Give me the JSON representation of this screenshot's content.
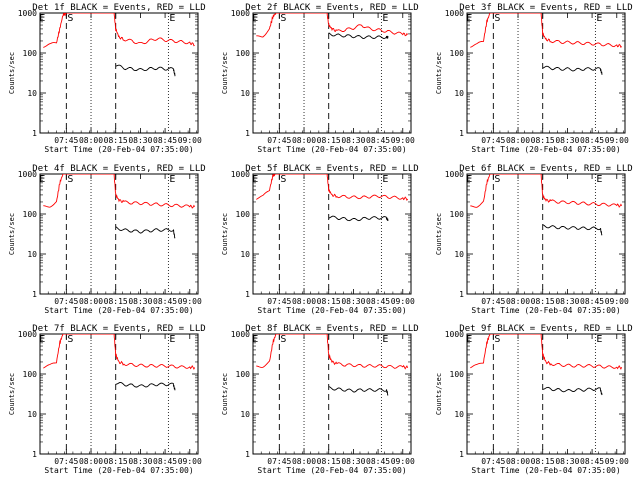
{
  "figure": {
    "xlabel": "Start Time (20-Feb-04 07:35:00)",
    "ylabel": "Counts/sec",
    "x_tick_labels": [
      "07:45",
      "08:00",
      "08:15",
      "08:30",
      "08:45",
      "09:00"
    ],
    "y_tick_labels": [
      "1",
      "10",
      "100",
      "1000"
    ],
    "colors": {
      "events": "#000000",
      "lld": "#ff0000",
      "axes": "#000000"
    }
  },
  "chart_data": [
    {
      "type": "line",
      "title": "Det 1f BLACK = Events, RED = LLD",
      "xlabel": "Start Time (20-Feb-04 07:35:00)",
      "ylabel": "Counts/sec",
      "y_scale": "log",
      "ylim": [
        1,
        1000
      ],
      "x_tick_values": [
        0,
        15,
        30,
        45,
        60,
        75
      ],
      "x_tick_labels": [
        "07:45",
        "08:00",
        "08:15",
        "08:30",
        "08:45",
        "09:00"
      ],
      "markers": {
        "S": 0,
        "E": 62,
        "E_left": -14
      },
      "series": [
        {
          "name": "Events",
          "color": "#000000",
          "x": [
            30,
            35,
            40,
            45,
            50,
            55,
            60,
            65,
            66
          ],
          "y": [
            50,
            42,
            40,
            38,
            40,
            42,
            40,
            40,
            28
          ]
        },
        {
          "name": "LLD",
          "color": "#ff0000",
          "x": [
            -14,
            -10,
            -6,
            -4,
            -2,
            0,
            5,
            10,
            15,
            20,
            25,
            29,
            30,
            32,
            35,
            40,
            45,
            50,
            55,
            60,
            65,
            70,
            75,
            78
          ],
          "y": [
            150,
            160,
            180,
            400,
            900,
            1000,
            1000,
            1000,
            1000,
            1000,
            1000,
            1000,
            400,
            250,
            220,
            200,
            170,
            200,
            230,
            210,
            200,
            190,
            180,
            160
          ]
        }
      ]
    },
    {
      "type": "line",
      "title": "Det 2f BLACK = Events, RED = LLD",
      "xlabel": "Start Time (20-Feb-04 07:35:00)",
      "ylabel": "Counts/sec",
      "y_scale": "log",
      "ylim": [
        1,
        1000
      ],
      "x_tick_values": [
        0,
        15,
        30,
        45,
        60,
        75
      ],
      "x_tick_labels": [
        "07:45",
        "08:00",
        "08:15",
        "08:30",
        "08:45",
        "09:00"
      ],
      "markers": {
        "S": 0,
        "E": 62,
        "E_left": -14
      },
      "series": [
        {
          "name": "Events",
          "color": "#000000",
          "x": [
            30,
            35,
            40,
            45,
            50,
            55,
            60,
            65,
            66
          ],
          "y": [
            300,
            280,
            270,
            260,
            250,
            250,
            250,
            250,
            250
          ]
        },
        {
          "name": "LLD",
          "color": "#ff0000",
          "x": [
            -14,
            -10,
            -6,
            -4,
            -2,
            0,
            5,
            10,
            15,
            20,
            25,
            29,
            30,
            32,
            35,
            40,
            45,
            50,
            55,
            60,
            65,
            70,
            75,
            78
          ],
          "y": [
            250,
            270,
            400,
            800,
            1000,
            1000,
            1000,
            1000,
            1000,
            1000,
            1000,
            1000,
            500,
            400,
            350,
            380,
            420,
            500,
            400,
            380,
            350,
            320,
            300,
            280
          ]
        }
      ]
    },
    {
      "type": "line",
      "title": "Det 3f BLACK = Events, RED = LLD",
      "xlabel": "Start Time (20-Feb-04 07:35:00)",
      "ylabel": "Counts/sec",
      "y_scale": "log",
      "ylim": [
        1,
        1000
      ],
      "x_tick_values": [
        0,
        15,
        30,
        45,
        60,
        75
      ],
      "x_tick_labels": [
        "07:45",
        "08:00",
        "08:15",
        "08:30",
        "08:45",
        "09:00"
      ],
      "markers": {
        "S": 0,
        "E": 62,
        "E_left": -14
      },
      "series": [
        {
          "name": "Events",
          "color": "#000000",
          "x": [
            30,
            35,
            40,
            45,
            50,
            55,
            60,
            65,
            66
          ],
          "y": [
            45,
            42,
            40,
            40,
            38,
            40,
            40,
            40,
            30
          ]
        },
        {
          "name": "LLD",
          "color": "#ff0000",
          "x": [
            -14,
            -10,
            -6,
            -4,
            -2,
            0,
            5,
            10,
            15,
            20,
            25,
            29,
            30,
            32,
            35,
            40,
            45,
            50,
            55,
            60,
            65,
            70,
            75,
            78
          ],
          "y": [
            150,
            160,
            200,
            600,
            1000,
            1000,
            1000,
            1000,
            1000,
            1000,
            1000,
            1000,
            300,
            220,
            200,
            190,
            185,
            180,
            175,
            170,
            165,
            160,
            155,
            150
          ]
        }
      ]
    },
    {
      "type": "line",
      "title": "Det 4f BLACK = Events, RED = LLD",
      "xlabel": "Start Time (20-Feb-04 07:35:00)",
      "ylabel": "Counts/sec",
      "y_scale": "log",
      "ylim": [
        1,
        1000
      ],
      "x_tick_values": [
        0,
        15,
        30,
        45,
        60,
        75
      ],
      "x_tick_labels": [
        "07:45",
        "08:00",
        "08:15",
        "08:30",
        "08:45",
        "09:00"
      ],
      "markers": {
        "S": 0,
        "E": 62,
        "E_left": -14
      },
      "series": [
        {
          "name": "Events",
          "color": "#000000",
          "x": [
            30,
            35,
            40,
            45,
            50,
            55,
            60,
            65,
            66
          ],
          "y": [
            45,
            40,
            38,
            36,
            38,
            40,
            40,
            40,
            25
          ]
        },
        {
          "name": "LLD",
          "color": "#ff0000",
          "x": [
            -14,
            -10,
            -6,
            -4,
            -2,
            0,
            5,
            10,
            15,
            20,
            25,
            29,
            30,
            32,
            35,
            40,
            45,
            50,
            55,
            60,
            65,
            70,
            75,
            78
          ],
          "y": [
            150,
            160,
            200,
            600,
            1000,
            1000,
            1000,
            1000,
            1000,
            1000,
            1000,
            1000,
            300,
            220,
            200,
            190,
            185,
            180,
            175,
            170,
            165,
            160,
            155,
            150
          ]
        }
      ]
    },
    {
      "type": "line",
      "title": "Det 5f BLACK = Events, RED = LLD",
      "xlabel": "Start Time (20-Feb-04 07:35:00)",
      "ylabel": "Counts/sec",
      "y_scale": "log",
      "ylim": [
        1,
        1000
      ],
      "x_tick_values": [
        0,
        15,
        30,
        45,
        60,
        75
      ],
      "x_tick_labels": [
        "07:45",
        "08:00",
        "08:15",
        "08:30",
        "08:45",
        "09:00"
      ],
      "markers": {
        "S": 0,
        "E": 62,
        "E_left": -14
      },
      "series": [
        {
          "name": "Events",
          "color": "#000000",
          "x": [
            30,
            35,
            40,
            45,
            50,
            55,
            60,
            65,
            66
          ],
          "y": [
            85,
            80,
            75,
            72,
            75,
            80,
            80,
            80,
            70
          ]
        },
        {
          "name": "LLD",
          "color": "#ff0000",
          "x": [
            -14,
            -10,
            -6,
            -4,
            -2,
            0,
            5,
            10,
            15,
            20,
            25,
            29,
            30,
            32,
            35,
            40,
            45,
            50,
            55,
            60,
            65,
            70,
            75,
            78
          ],
          "y": [
            250,
            270,
            400,
            900,
            1000,
            1000,
            1000,
            1000,
            1000,
            1000,
            1000,
            1000,
            400,
            300,
            280,
            270,
            265,
            260,
            270,
            280,
            270,
            260,
            250,
            240
          ]
        }
      ]
    },
    {
      "type": "line",
      "title": "Det 6f BLACK = Events, RED = LLD",
      "xlabel": "Start Time (20-Feb-04 07:35:00)",
      "ylabel": "Counts/sec",
      "y_scale": "log",
      "ylim": [
        1,
        1000
      ],
      "x_tick_values": [
        0,
        15,
        30,
        45,
        60,
        75
      ],
      "x_tick_labels": [
        "07:45",
        "08:00",
        "08:15",
        "08:30",
        "08:45",
        "09:00"
      ],
      "markers": {
        "S": 0,
        "E": 62,
        "E_left": -14
      },
      "series": [
        {
          "name": "Events",
          "color": "#000000",
          "x": [
            30,
            35,
            40,
            45,
            50,
            55,
            60,
            65,
            66
          ],
          "y": [
            50,
            48,
            46,
            45,
            45,
            44,
            44,
            44,
            30
          ]
        },
        {
          "name": "LLD",
          "color": "#ff0000",
          "x": [
            -14,
            -10,
            -6,
            -4,
            -2,
            0,
            5,
            10,
            15,
            20,
            25,
            29,
            30,
            32,
            35,
            40,
            45,
            50,
            55,
            60,
            65,
            70,
            75,
            78
          ],
          "y": [
            150,
            160,
            200,
            600,
            1000,
            1000,
            1000,
            1000,
            1000,
            1000,
            1000,
            1000,
            280,
            220,
            210,
            200,
            195,
            190,
            185,
            180,
            175,
            170,
            165,
            160
          ]
        }
      ]
    },
    {
      "type": "line",
      "title": "Det 7f BLACK = Events, RED = LLD",
      "xlabel": "Start Time (20-Feb-04 07:35:00)",
      "ylabel": "Counts/sec",
      "y_scale": "log",
      "ylim": [
        1,
        1000
      ],
      "x_tick_values": [
        0,
        15,
        30,
        45,
        60,
        75
      ],
      "x_tick_labels": [
        "07:45",
        "08:00",
        "08:15",
        "08:30",
        "08:45",
        "09:00"
      ],
      "markers": {
        "S": 0,
        "E": 62,
        "E_left": -14
      },
      "series": [
        {
          "name": "Events",
          "color": "#000000",
          "x": [
            30,
            35,
            40,
            45,
            50,
            55,
            60,
            65,
            66
          ],
          "y": [
            60,
            55,
            52,
            50,
            52,
            55,
            55,
            55,
            40
          ]
        },
        {
          "name": "LLD",
          "color": "#ff0000",
          "x": [
            -14,
            -10,
            -6,
            -4,
            -2,
            0,
            5,
            10,
            15,
            20,
            25,
            29,
            30,
            32,
            35,
            40,
            45,
            50,
            55,
            60,
            65,
            70,
            75,
            78
          ],
          "y": [
            150,
            160,
            200,
            600,
            1000,
            1000,
            1000,
            1000,
            1000,
            1000,
            1000,
            1000,
            300,
            200,
            180,
            170,
            165,
            160,
            160,
            160,
            155,
            150,
            150,
            145
          ]
        }
      ]
    },
    {
      "type": "line",
      "title": "Det 8f BLACK = Events, RED = LLD",
      "xlabel": "Start Time (20-Feb-04 07:35:00)",
      "ylabel": "Counts/sec",
      "y_scale": "log",
      "ylim": [
        1,
        1000
      ],
      "x_tick_values": [
        0,
        15,
        30,
        45,
        60,
        75
      ],
      "x_tick_labels": [
        "07:45",
        "08:00",
        "08:15",
        "08:30",
        "08:45",
        "09:00"
      ],
      "markers": {
        "S": 0,
        "E": 62,
        "E_left": -14
      },
      "series": [
        {
          "name": "Events",
          "color": "#000000",
          "x": [
            30,
            35,
            40,
            45,
            50,
            55,
            60,
            65,
            66
          ],
          "y": [
            45,
            42,
            40,
            38,
            40,
            40,
            40,
            40,
            30
          ]
        },
        {
          "name": "LLD",
          "color": "#ff0000",
          "x": [
            -14,
            -10,
            -6,
            -4,
            -2,
            0,
            5,
            10,
            15,
            20,
            25,
            29,
            30,
            32,
            35,
            40,
            45,
            50,
            55,
            60,
            65,
            70,
            75,
            78
          ],
          "y": [
            150,
            160,
            200,
            600,
            1000,
            1000,
            1000,
            1000,
            1000,
            1000,
            1000,
            1000,
            300,
            200,
            180,
            170,
            165,
            160,
            160,
            160,
            155,
            150,
            150,
            145
          ]
        }
      ]
    },
    {
      "type": "line",
      "title": "Det 9f BLACK = Events, RED = LLD",
      "xlabel": "Start Time (20-Feb-04 07:35:00)",
      "ylabel": "Counts/sec",
      "y_scale": "log",
      "ylim": [
        1,
        1000
      ],
      "x_tick_values": [
        0,
        15,
        30,
        45,
        60,
        75
      ],
      "x_tick_labels": [
        "07:45",
        "08:00",
        "08:15",
        "08:30",
        "08:45",
        "09:00"
      ],
      "markers": {
        "S": 0,
        "E": 62,
        "E_left": -14
      },
      "series": [
        {
          "name": "Events",
          "color": "#000000",
          "x": [
            30,
            35,
            40,
            45,
            50,
            55,
            60,
            65,
            66
          ],
          "y": [
            45,
            42,
            40,
            38,
            40,
            40,
            42,
            42,
            30
          ]
        },
        {
          "name": "LLD",
          "color": "#ff0000",
          "x": [
            -14,
            -10,
            -6,
            -4,
            -2,
            0,
            5,
            10,
            15,
            20,
            25,
            29,
            30,
            32,
            35,
            40,
            45,
            50,
            55,
            60,
            65,
            70,
            75,
            78
          ],
          "y": [
            150,
            160,
            200,
            600,
            1000,
            1000,
            1000,
            1000,
            1000,
            1000,
            1000,
            1000,
            300,
            200,
            180,
            170,
            165,
            160,
            160,
            160,
            155,
            150,
            150,
            145
          ]
        }
      ]
    }
  ]
}
